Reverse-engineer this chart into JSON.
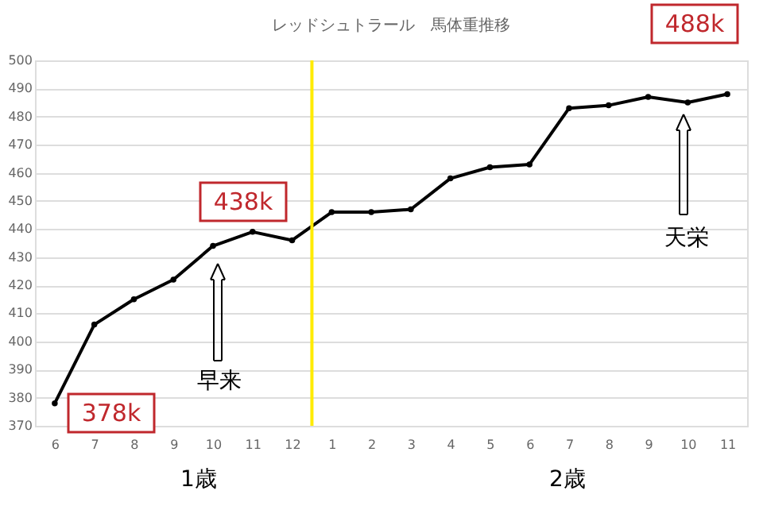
{
  "chart_data": {
    "type": "line",
    "title": "レッドシュトラール　馬体重推移",
    "categories": [
      "6",
      "7",
      "8",
      "9",
      "10",
      "11",
      "12",
      "1",
      "2",
      "3",
      "4",
      "5",
      "6",
      "7",
      "8",
      "9",
      "10",
      "11"
    ],
    "series": [
      {
        "color": "#000000",
        "values": [
          378,
          406,
          415,
          422,
          434,
          439,
          436,
          446,
          446,
          447,
          458,
          462,
          463,
          483,
          484,
          487,
          485,
          488
        ]
      }
    ],
    "ylim": [
      370,
      500
    ],
    "yticks": [
      370,
      380,
      390,
      400,
      410,
      420,
      430,
      440,
      450,
      460,
      470,
      480,
      490,
      500
    ],
    "grid": "y",
    "marker": "circle",
    "line_style": "solid",
    "ref_lines": [
      {
        "axis": "x",
        "value": "1",
        "color": "#ffeb00"
      }
    ],
    "annotations": [
      "378k",
      "438k",
      "488k",
      "早来",
      "天栄",
      "1歳",
      "2歳"
    ]
  }
}
